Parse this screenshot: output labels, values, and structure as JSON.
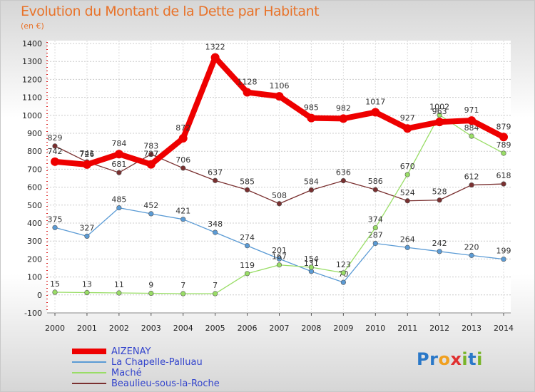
{
  "title": "Evolution du Montant de la Dette par Habitant",
  "unit": "(en €)",
  "logo": {
    "letters": [
      "P",
      "r",
      "o",
      "x",
      "i",
      "t",
      "i"
    ],
    "colors": [
      "#2a78c8",
      "#2a78c8",
      "#f0a020",
      "#e03030",
      "#78b428",
      "#2a78c8",
      "#78b428"
    ]
  },
  "chart_data": {
    "type": "line",
    "x": [
      "2000",
      "2001",
      "2002",
      "2003",
      "2004",
      "2005",
      "2006",
      "2007",
      "2008",
      "2009",
      "2010",
      "2011",
      "2012",
      "2013",
      "2014"
    ],
    "ylim": [
      -100,
      1400
    ],
    "yticks": [
      "-100",
      "0",
      "100",
      "200",
      "300",
      "400",
      "500",
      "600",
      "700",
      "800",
      "900",
      "1000",
      "1100",
      "1200",
      "1300",
      "1400"
    ],
    "grid": true,
    "legend_position": "bottom-left",
    "series": [
      {
        "name": "AIZENAY",
        "color": "#ee0000",
        "values": [
          742,
          726,
          784,
          727,
          872,
          1322,
          1128,
          1106,
          985,
          982,
          1017,
          927,
          963,
          971,
          879
        ],
        "labels": [
          "742",
          "726",
          "784",
          "727",
          "872",
          "1322",
          "1128",
          "1106",
          "985",
          "982",
          "1017",
          "927",
          "963",
          "971",
          "879"
        ]
      },
      {
        "name": "La Chapelle-Palluau",
        "color": "#5b9bd5",
        "values": [
          375,
          327,
          485,
          452,
          421,
          348,
          274,
          201,
          131,
          70,
          287,
          264,
          242,
          220,
          199
        ],
        "labels": [
          "375",
          "327",
          "485",
          "452",
          "421",
          "348",
          "274",
          "201",
          "131",
          "70",
          "287",
          "264",
          "242",
          "220",
          "199"
        ]
      },
      {
        "name": "Maché",
        "color": "#99dd66",
        "values": [
          15,
          13,
          11,
          9,
          7,
          7,
          119,
          167,
          154,
          123,
          374,
          670,
          1002,
          884,
          789
        ],
        "labels": [
          "15",
          "13",
          "11",
          "9",
          "7",
          "7",
          "119",
          "167",
          "154",
          "123",
          "374",
          "670",
          "1002",
          "884",
          "789"
        ]
      },
      {
        "name": "Beaulieu-sous-la-Roche",
        "color": "#7a3030",
        "values": [
          829,
          741,
          681,
          783,
          706,
          637,
          585,
          508,
          584,
          636,
          586,
          524,
          528,
          612,
          618
        ],
        "labels": [
          "829",
          "741",
          "681",
          "783",
          "706",
          "637",
          "585",
          "508",
          "584",
          "636",
          "586",
          "524",
          "528",
          "612",
          "618"
        ]
      }
    ]
  }
}
